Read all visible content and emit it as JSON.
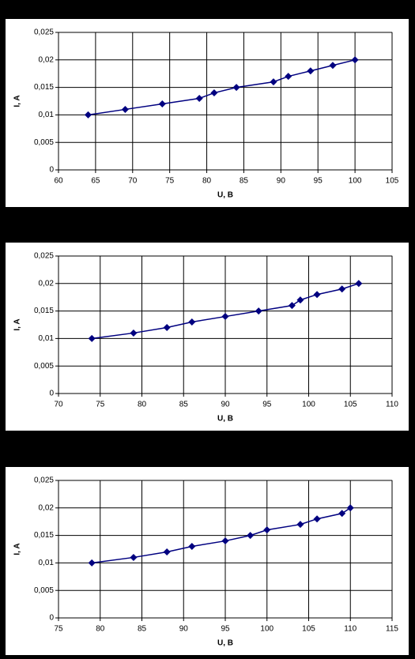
{
  "chart_data": [
    {
      "type": "line",
      "x_label": "U, B",
      "y_label": "I, A",
      "color": "#000080",
      "grid": true,
      "x": [
        64,
        69,
        74,
        79,
        81,
        84,
        89,
        91,
        94,
        97,
        100
      ],
      "values": [
        0.01,
        0.011,
        0.012,
        0.013,
        0.014,
        0.015,
        0.016,
        0.017,
        0.018,
        0.019,
        0.02
      ],
      "xlim": [
        60,
        105
      ],
      "xticks": [
        60,
        65,
        70,
        75,
        80,
        85,
        90,
        95,
        100,
        105
      ],
      "ylim": [
        0,
        0.025
      ],
      "yticks": [
        0,
        {
          "value": 0.005,
          "label": "0,005"
        },
        {
          "value": 0.01,
          "label": "0,01"
        },
        {
          "value": 0.015,
          "label": "0,015"
        },
        {
          "value": 0.02,
          "label": "0,02"
        },
        {
          "value": 0.025,
          "label": "0,025"
        }
      ]
    },
    {
      "type": "line",
      "x_label": "U, B",
      "y_label": "I, A",
      "color": "#000080",
      "grid": true,
      "x": [
        74,
        79,
        83,
        86,
        90,
        94,
        98,
        99,
        101,
        104,
        106
      ],
      "values": [
        0.01,
        0.011,
        0.012,
        0.013,
        0.014,
        0.015,
        0.016,
        0.017,
        0.018,
        0.019,
        0.02
      ],
      "xlim": [
        70,
        110
      ],
      "xticks": [
        70,
        75,
        80,
        85,
        90,
        95,
        100,
        105,
        110
      ],
      "ylim": [
        0,
        0.025
      ],
      "yticks": [
        0,
        {
          "value": 0.005,
          "label": "0,005"
        },
        {
          "value": 0.01,
          "label": "0,01"
        },
        {
          "value": 0.015,
          "label": "0,015"
        },
        {
          "value": 0.02,
          "label": "0,02"
        },
        {
          "value": 0.025,
          "label": "0,025"
        }
      ]
    },
    {
      "type": "line",
      "x_label": "U, B",
      "y_label": "I, A",
      "color": "#000080",
      "grid": true,
      "x": [
        79,
        84,
        88,
        91,
        95,
        98,
        100,
        104,
        106,
        109,
        110
      ],
      "values": [
        0.01,
        0.011,
        0.012,
        0.013,
        0.014,
        0.015,
        0.016,
        0.017,
        0.018,
        0.019,
        0.02
      ],
      "xlim": [
        75,
        115
      ],
      "xticks": [
        75,
        80,
        85,
        90,
        95,
        100,
        105,
        110,
        115
      ],
      "ylim": [
        0,
        0.025
      ],
      "yticks": [
        0,
        {
          "value": 0.005,
          "label": "0,005"
        },
        {
          "value": 0.01,
          "label": "0,01"
        },
        {
          "value": 0.015,
          "label": "0,015"
        },
        {
          "value": 0.02,
          "label": "0,02"
        },
        {
          "value": 0.025,
          "label": "0,025"
        }
      ]
    }
  ]
}
